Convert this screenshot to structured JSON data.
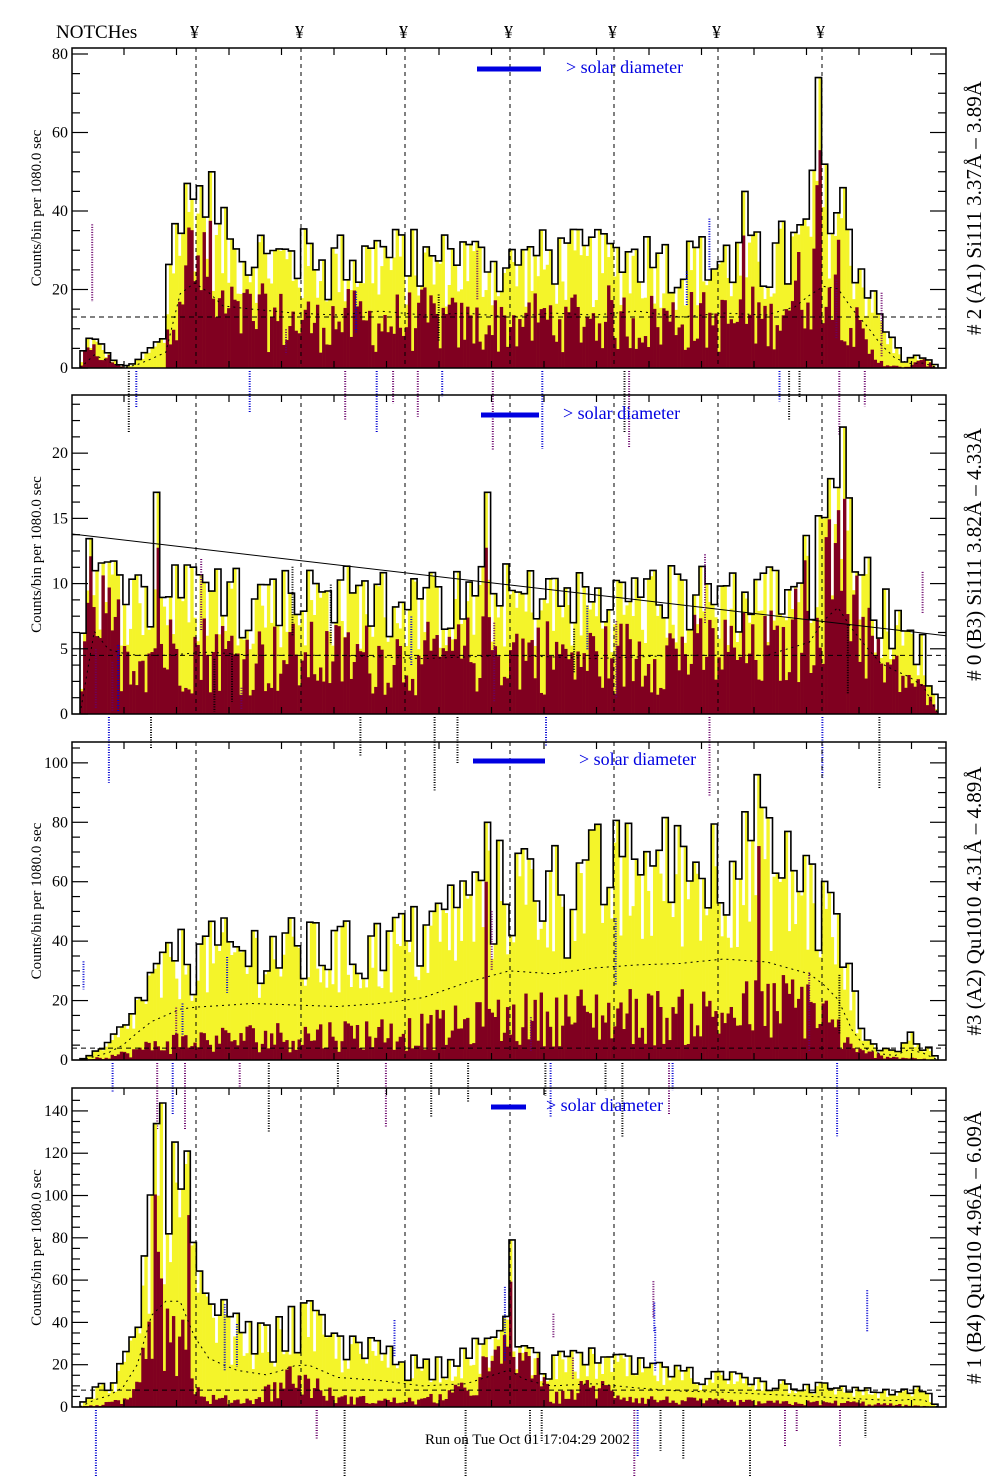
{
  "header": {
    "notches_label": "NOTCHes",
    "notch_symbol": "¥",
    "notch_count": 7
  },
  "footer": {
    "run_text": "Run on Tue Oct 01 17:04:29 2002"
  },
  "colors": {
    "total": "#f4f42a",
    "subset": "#800020",
    "outline": "#000000",
    "legend": "#0000e0",
    "annotation_black": "#000000",
    "annotation_blue": "#0000d0",
    "annotation_purple": "#6a006a"
  },
  "chart_data": [
    {
      "type": "area",
      "id": "panel-a1",
      "title": "# 2 (A1) Si111  3.37Å – 3.89Å",
      "ylabel": "Counts/bin per   1080.0 sec",
      "ylim": [
        0,
        80
      ],
      "yticks": [
        0,
        20,
        40,
        60,
        80
      ],
      "legend": "> solar diameter",
      "level_line": 13,
      "series": [
        {
          "name": "total",
          "shape": [
            [
              0,
              0
            ],
            [
              0.01,
              8
            ],
            [
              0.03,
              4
            ],
            [
              0.05,
              0
            ],
            [
              0.07,
              2
            ],
            [
              0.085,
              5
            ],
            [
              0.1,
              8
            ],
            [
              0.105,
              30
            ],
            [
              0.12,
              40
            ],
            [
              0.14,
              45
            ],
            [
              0.16,
              32
            ],
            [
              0.2,
              30
            ],
            [
              0.25,
              28
            ],
            [
              0.3,
              27
            ],
            [
              0.35,
              29
            ],
            [
              0.4,
              27
            ],
            [
              0.45,
              28
            ],
            [
              0.5,
              26
            ],
            [
              0.55,
              28
            ],
            [
              0.6,
              27
            ],
            [
              0.65,
              29
            ],
            [
              0.7,
              26
            ],
            [
              0.75,
              28
            ],
            [
              0.8,
              27
            ],
            [
              0.84,
              32
            ],
            [
              0.86,
              42
            ],
            [
              0.89,
              40
            ],
            [
              0.9,
              30
            ],
            [
              0.92,
              20
            ],
            [
              0.94,
              8
            ],
            [
              0.96,
              2
            ],
            [
              0.98,
              3
            ],
            [
              1.0,
              0
            ]
          ]
        },
        {
          "name": "subset",
          "shape": [
            [
              0,
              0
            ],
            [
              0.01,
              5
            ],
            [
              0.03,
              3
            ],
            [
              0.05,
              0
            ],
            [
              0.1,
              0
            ],
            [
              0.105,
              18
            ],
            [
              0.12,
              28
            ],
            [
              0.14,
              30
            ],
            [
              0.16,
              15
            ],
            [
              0.2,
              14
            ],
            [
              0.25,
              12
            ],
            [
              0.3,
              13
            ],
            [
              0.35,
              12
            ],
            [
              0.4,
              13
            ],
            [
              0.45,
              11
            ],
            [
              0.5,
              12
            ],
            [
              0.55,
              13
            ],
            [
              0.6,
              14
            ],
            [
              0.65,
              12
            ],
            [
              0.7,
              13
            ],
            [
              0.75,
              12
            ],
            [
              0.8,
              14
            ],
            [
              0.84,
              20
            ],
            [
              0.86,
              35
            ],
            [
              0.89,
              22
            ],
            [
              0.9,
              12
            ],
            [
              0.92,
              4
            ],
            [
              0.94,
              1
            ],
            [
              0.96,
              0
            ],
            [
              0.98,
              2
            ],
            [
              1.0,
              0
            ]
          ]
        }
      ],
      "peaks": [
        [
          0.86,
          74
        ],
        [
          0.15,
          50
        ],
        [
          0.77,
          45
        ]
      ]
    },
    {
      "type": "area",
      "id": "panel-b3",
      "title": "# 0 (B3) Si111  3.82Å – 4.33Å",
      "ylabel": "Counts/bin per   1080.0 sec",
      "ylim": [
        0,
        24
      ],
      "yticks": [
        0,
        5,
        10,
        15,
        20
      ],
      "legend": "> solar diameter",
      "level_line": 4.5,
      "trend_line": [
        [
          0,
          13.8
        ],
        [
          1,
          6
        ]
      ],
      "series": [
        {
          "name": "total",
          "shape": [
            [
              0,
              0
            ],
            [
              0.01,
              14
            ],
            [
              0.03,
              10
            ],
            [
              0.06,
              9
            ],
            [
              0.1,
              9
            ],
            [
              0.15,
              9.5
            ],
            [
              0.2,
              9
            ],
            [
              0.3,
              9
            ],
            [
              0.4,
              8.5
            ],
            [
              0.5,
              9
            ],
            [
              0.6,
              8.5
            ],
            [
              0.7,
              9
            ],
            [
              0.8,
              9
            ],
            [
              0.85,
              11
            ],
            [
              0.88,
              17
            ],
            [
              0.9,
              13
            ],
            [
              0.93,
              8
            ],
            [
              0.96,
              6
            ],
            [
              0.98,
              5
            ],
            [
              1.0,
              0
            ]
          ]
        },
        {
          "name": "subset",
          "shape": [
            [
              0,
              0
            ],
            [
              0.01,
              13
            ],
            [
              0.03,
              7
            ],
            [
              0.06,
              5
            ],
            [
              0.1,
              5
            ],
            [
              0.15,
              5
            ],
            [
              0.2,
              4.5
            ],
            [
              0.3,
              4.5
            ],
            [
              0.4,
              4.5
            ],
            [
              0.5,
              5
            ],
            [
              0.6,
              4.5
            ],
            [
              0.7,
              5
            ],
            [
              0.8,
              5
            ],
            [
              0.85,
              8
            ],
            [
              0.88,
              15
            ],
            [
              0.9,
              10
            ],
            [
              0.93,
              4
            ],
            [
              0.96,
              3
            ],
            [
              0.98,
              2
            ],
            [
              1.0,
              0
            ]
          ]
        }
      ],
      "peaks": [
        [
          0.89,
          22
        ],
        [
          0.47,
          17
        ],
        [
          0.09,
          17
        ]
      ]
    },
    {
      "type": "area",
      "id": "panel-a2",
      "title": "#3 (A2) Qu1010  4.31Å – 4.89Å",
      "ylabel": "Counts/bin per   1080.0 sec",
      "ylim": [
        0,
        105
      ],
      "yticks": [
        0,
        20,
        40,
        60,
        80,
        100
      ],
      "legend": "> solar diameter",
      "level_line": 4,
      "series": [
        {
          "name": "total",
          "shape": [
            [
              0,
              0
            ],
            [
              0.03,
              4
            ],
            [
              0.05,
              10
            ],
            [
              0.08,
              25
            ],
            [
              0.12,
              35
            ],
            [
              0.2,
              38
            ],
            [
              0.3,
              36
            ],
            [
              0.35,
              38
            ],
            [
              0.4,
              42
            ],
            [
              0.45,
              52
            ],
            [
              0.5,
              60
            ],
            [
              0.55,
              58
            ],
            [
              0.6,
              62
            ],
            [
              0.65,
              64
            ],
            [
              0.7,
              65
            ],
            [
              0.75,
              68
            ],
            [
              0.8,
              66
            ],
            [
              0.85,
              58
            ],
            [
              0.88,
              45
            ],
            [
              0.9,
              20
            ],
            [
              0.92,
              5
            ],
            [
              0.95,
              3
            ],
            [
              0.97,
              8
            ],
            [
              1.0,
              0
            ]
          ]
        },
        {
          "name": "subset",
          "shape": [
            [
              0,
              0
            ],
            [
              0.05,
              2
            ],
            [
              0.1,
              6
            ],
            [
              0.2,
              8
            ],
            [
              0.3,
              9
            ],
            [
              0.4,
              10
            ],
            [
              0.5,
              14
            ],
            [
              0.6,
              16
            ],
            [
              0.7,
              15
            ],
            [
              0.8,
              18
            ],
            [
              0.85,
              20
            ],
            [
              0.88,
              12
            ],
            [
              0.9,
              3
            ],
            [
              0.95,
              1
            ],
            [
              1.0,
              0
            ]
          ]
        }
      ],
      "peaks": [
        [
          0.79,
          96
        ],
        [
          0.47,
          80
        ]
      ]
    },
    {
      "type": "area",
      "id": "panel-b4",
      "title": "# 1 (B4) Qu1010 4.96Å – 6.09Å",
      "ylabel": "Counts/bin per   1080.0 sec",
      "ylim": [
        0,
        148
      ],
      "yticks": [
        0,
        20,
        40,
        60,
        80,
        100,
        120,
        140
      ],
      "legend": "> solar diameter",
      "level_line": 8,
      "series": [
        {
          "name": "total",
          "shape": [
            [
              0,
              0
            ],
            [
              0.02,
              8
            ],
            [
              0.04,
              12
            ],
            [
              0.06,
              25
            ],
            [
              0.08,
              70
            ],
            [
              0.09,
              120
            ],
            [
              0.1,
              100
            ],
            [
              0.12,
              100
            ],
            [
              0.14,
              50
            ],
            [
              0.18,
              35
            ],
            [
              0.22,
              30
            ],
            [
              0.26,
              42
            ],
            [
              0.3,
              28
            ],
            [
              0.35,
              25
            ],
            [
              0.4,
              20
            ],
            [
              0.45,
              22
            ],
            [
              0.5,
              35
            ],
            [
              0.52,
              25
            ],
            [
              0.55,
              20
            ],
            [
              0.6,
              22
            ],
            [
              0.65,
              18
            ],
            [
              0.7,
              15
            ],
            [
              0.75,
              14
            ],
            [
              0.8,
              12
            ],
            [
              0.85,
              10
            ],
            [
              0.9,
              8
            ],
            [
              0.95,
              6
            ],
            [
              0.98,
              8
            ],
            [
              1.0,
              0
            ]
          ]
        },
        {
          "name": "subset",
          "shape": [
            [
              0,
              0
            ],
            [
              0.04,
              2
            ],
            [
              0.06,
              4
            ],
            [
              0.08,
              50
            ],
            [
              0.09,
              80
            ],
            [
              0.1,
              40
            ],
            [
              0.11,
              55
            ],
            [
              0.12,
              30
            ],
            [
              0.14,
              4
            ],
            [
              0.2,
              3
            ],
            [
              0.25,
              15
            ],
            [
              0.3,
              4
            ],
            [
              0.35,
              3
            ],
            [
              0.4,
              3
            ],
            [
              0.45,
              8
            ],
            [
              0.5,
              30
            ],
            [
              0.51,
              70
            ],
            [
              0.53,
              20
            ],
            [
              0.55,
              4
            ],
            [
              0.6,
              10
            ],
            [
              0.65,
              4
            ],
            [
              0.7,
              3
            ],
            [
              0.8,
              2
            ],
            [
              0.9,
              2
            ],
            [
              1.0,
              0
            ]
          ]
        }
      ],
      "peaks": [
        [
          0.085,
          134
        ],
        [
          0.125,
          121
        ],
        [
          0.5,
          79
        ]
      ]
    }
  ]
}
